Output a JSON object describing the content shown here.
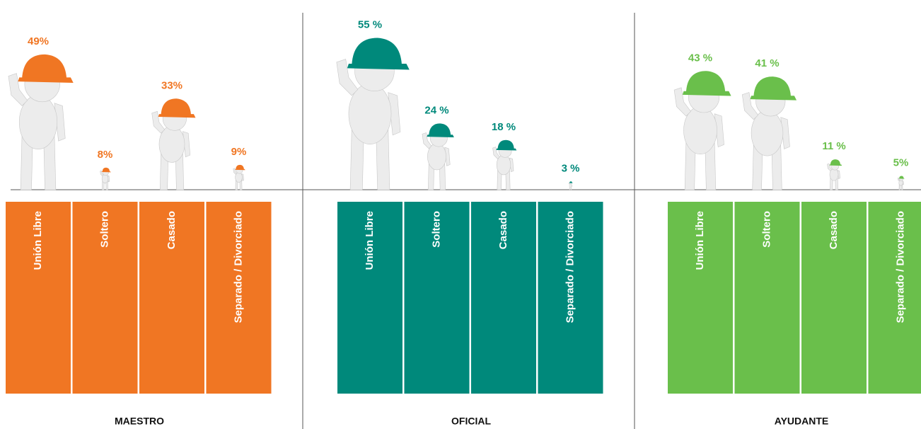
{
  "chart_data": [
    {
      "type": "pictograph",
      "title": "MAESTRO",
      "categories": [
        "Unión Libre",
        "Soltero",
        "Casado",
        "Separado / Divorciado"
      ],
      "values": [
        49,
        8,
        33,
        9
      ],
      "value_labels": [
        "49%",
        "8%",
        "33%",
        "9%"
      ],
      "color": "#f07623"
    },
    {
      "type": "pictograph",
      "title": "OFICIAL",
      "categories": [
        "Unión Libre",
        "Soltero",
        "Casado",
        "Separado / Divorciado"
      ],
      "values": [
        55,
        24,
        18,
        3
      ],
      "value_labels": [
        "55 %",
        "24 %",
        "18 %",
        "3 %"
      ],
      "color": "#00897b"
    },
    {
      "type": "pictograph",
      "title": "AYUDANTE",
      "categories": [
        "Unión Libre",
        "Soltero",
        "Casado",
        "Separado / Divorciado"
      ],
      "values": [
        43,
        41,
        11,
        5
      ],
      "value_labels": [
        "43 %",
        "41 %",
        "11 %",
        "5%"
      ],
      "color": "#6abf4b"
    }
  ]
}
